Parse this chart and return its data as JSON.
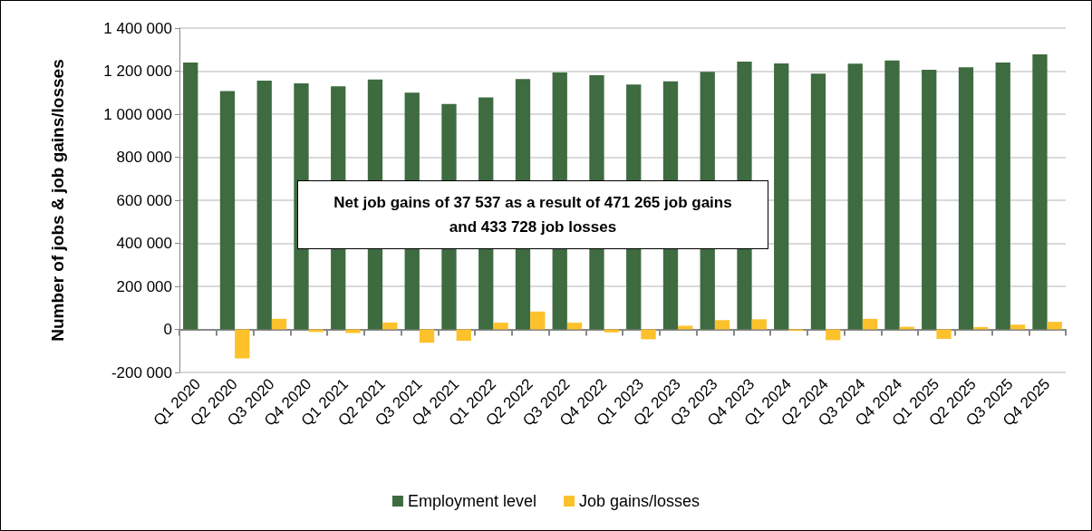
{
  "chart_data": {
    "type": "bar",
    "ylabel": "Number of jobs & job gains/losses",
    "categories": [
      "Q1 2020",
      "Q2 2020",
      "Q3 2020",
      "Q4 2020",
      "Q1 2021",
      "Q2 2021",
      "Q3 2021",
      "Q4 2021",
      "Q1 2022",
      "Q2 2022",
      "Q3 2022",
      "Q4 2022",
      "Q1 2023",
      "Q2 2023",
      "Q3 2023",
      "Q4 2023",
      "Q1 2024",
      "Q2 2024",
      "Q3 2024",
      "Q4 2024",
      "Q1 2025",
      "Q2 2025",
      "Q3 2025",
      "Q4 2025"
    ],
    "series": [
      {
        "name": "Employment level",
        "color": "#3e6b40",
        "values": [
          1240000,
          1107000,
          1156000,
          1143000,
          1129000,
          1161000,
          1100000,
          1047000,
          1078000,
          1163000,
          1194000,
          1181000,
          1138000,
          1153000,
          1197000,
          1244000,
          1236000,
          1188000,
          1235000,
          1249000,
          1206000,
          1218000,
          1240000,
          1278000
        ]
      },
      {
        "name": "Job gains/losses",
        "color": "#fdc12b",
        "values": [
          0,
          -135000,
          49000,
          -12000,
          -17000,
          32000,
          -62000,
          -53000,
          31000,
          83000,
          31000,
          -14000,
          -46000,
          17000,
          43000,
          47000,
          -7000,
          -50000,
          49000,
          12000,
          -44000,
          11000,
          22000,
          35000
        ]
      }
    ],
    "ylim": [
      -200000,
      1400000
    ],
    "yticks": [
      {
        "value": -200000,
        "label": "-200 000"
      },
      {
        "value": 0,
        "label": "0"
      },
      {
        "value": 200000,
        "label": "200 000"
      },
      {
        "value": 400000,
        "label": "400 000"
      },
      {
        "value": 600000,
        "label": "600 000"
      },
      {
        "value": 800000,
        "label": "800 000"
      },
      {
        "value": 1000000,
        "label": "1 000 000"
      },
      {
        "value": 1200000,
        "label": "1 200 000"
      },
      {
        "value": 1400000,
        "label": "1 400 000"
      }
    ],
    "annotations": [
      "Net job gains of 37 537 as a result of 471 265 job gains and 433 728 job losses"
    ],
    "grid": "y",
    "legend": "bottom"
  }
}
